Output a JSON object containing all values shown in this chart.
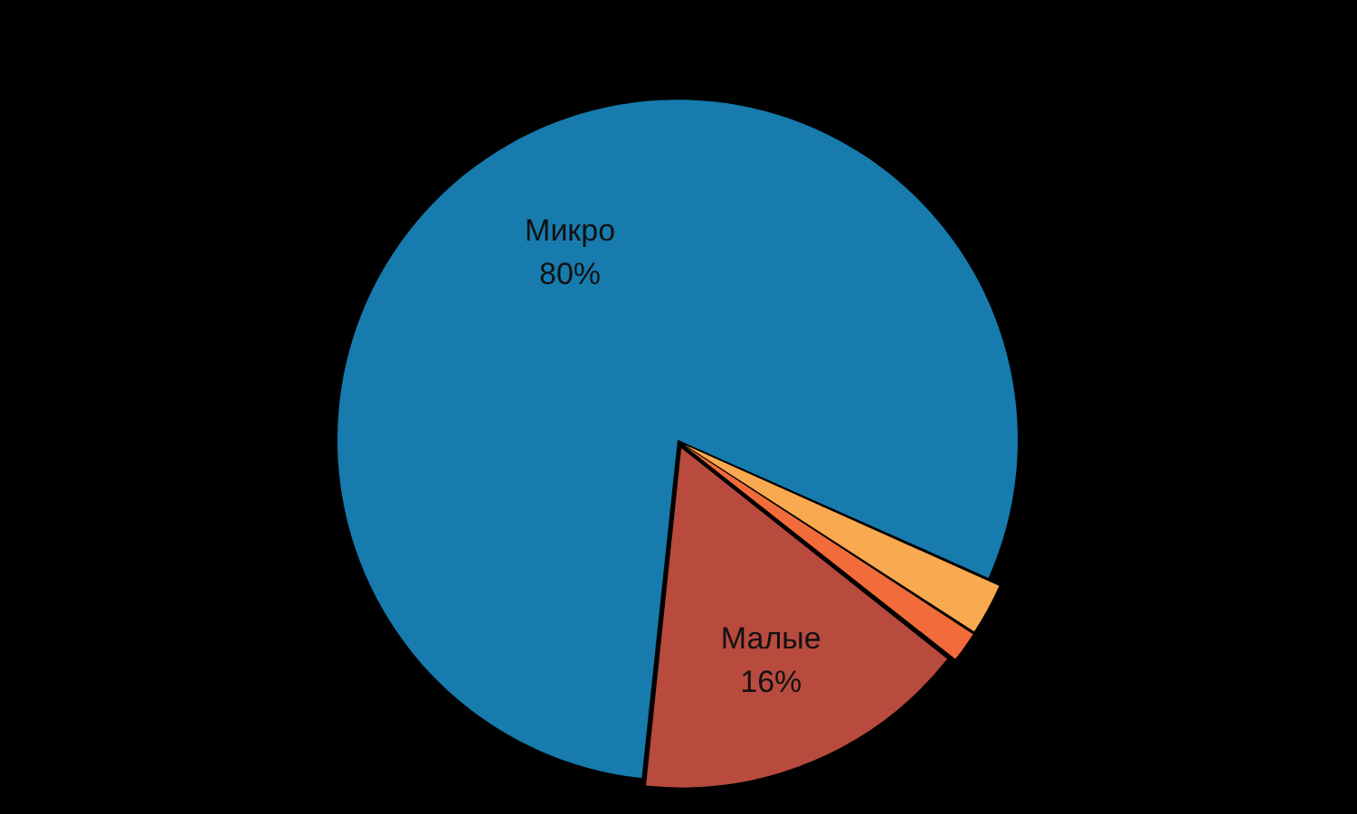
{
  "chart_data": {
    "type": "pie",
    "categories": [
      "Микро",
      null,
      null,
      "Малые"
    ],
    "values": [
      80,
      2.5,
      1.5,
      16
    ],
    "value_labels": [
      "80%",
      null,
      null,
      "16%"
    ],
    "colors": [
      "#177bad",
      "#f9a94f",
      "#f26b3a",
      "#b94a3e"
    ],
    "legend": false
  }
}
